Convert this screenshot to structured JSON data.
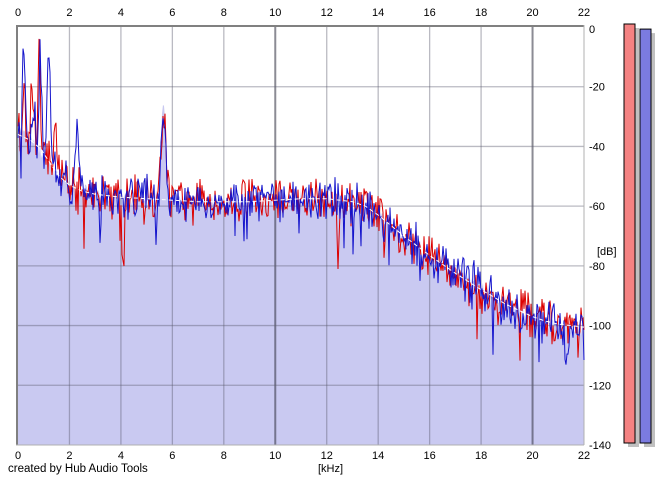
{
  "footer": {
    "credit": "created by Hub Audio Tools"
  },
  "chart_data": {
    "type": "line",
    "title": "",
    "xlabel": "[kHz]",
    "ylabel": "[dB]",
    "xlim": [
      0,
      22
    ],
    "ylim": [
      -140,
      0
    ],
    "grid": "on",
    "x_ticks": [
      0,
      2,
      4,
      6,
      8,
      10,
      12,
      14,
      16,
      18,
      20,
      22
    ],
    "y_ticks": [
      0,
      -20,
      -40,
      -60,
      -80,
      -100,
      -120,
      -140
    ],
    "colors": {
      "trace_red": "#dc0000",
      "trace_blue": "#1414cc",
      "fill_area": "#c9c9f1",
      "average_line": "#ffffff",
      "grid_minor": "rgba(90,90,110,0.42)",
      "grid_major": "rgba(55,55,70,0.58)",
      "border_dark": "#808080",
      "border_light": "#b0b0b0",
      "label": "#000000"
    },
    "series": [
      {
        "name": "spectrum-red",
        "color": "#dc0000",
        "style": "solid-noise"
      },
      {
        "name": "spectrum-blue",
        "color": "#1414cc",
        "style": "solid-noise"
      },
      {
        "name": "average-spectrum",
        "color": "#ffffff",
        "style": "dashed"
      },
      {
        "name": "average-fill",
        "color": "#c9c9f1",
        "style": "filled-area"
      }
    ],
    "average_spectrum_dB": [
      [
        0,
        -36
      ],
      [
        0.5,
        -38
      ],
      [
        0.9,
        -41
      ],
      [
        1.2,
        -45
      ],
      [
        1.6,
        -50
      ],
      [
        2,
        -53
      ],
      [
        2.5,
        -55
      ],
      [
        3,
        -56
      ],
      [
        4,
        -57
      ],
      [
        5,
        -57.5
      ],
      [
        6,
        -58
      ],
      [
        7,
        -58.5
      ],
      [
        9,
        -58.5
      ],
      [
        10,
        -58
      ],
      [
        11,
        -57.5
      ],
      [
        12,
        -57.5
      ],
      [
        13,
        -58.5
      ],
      [
        13.5,
        -60
      ],
      [
        14,
        -63
      ],
      [
        14.5,
        -66.5
      ],
      [
        15,
        -70
      ],
      [
        16,
        -76.5
      ],
      [
        17,
        -82.5
      ],
      [
        18,
        -88
      ],
      [
        19,
        -93
      ],
      [
        20,
        -97
      ],
      [
        20.5,
        -98.5
      ],
      [
        21,
        -99.5
      ],
      [
        22,
        -100.5
      ]
    ],
    "spectral_peaks": [
      {
        "f_khz": 0.22,
        "width": 0.04,
        "peak_dB": -16,
        "channel": "red"
      },
      {
        "f_khz": 0.23,
        "width": 0.04,
        "peak_dB": -6,
        "channel": "blue"
      },
      {
        "f_khz": 0.55,
        "width": 0.05,
        "peak_dB": -20,
        "channel": "red"
      },
      {
        "f_khz": 0.62,
        "width": 0.05,
        "peak_dB": -24,
        "channel": "blue"
      },
      {
        "f_khz": 0.82,
        "width": 0.05,
        "peak_dB": -8,
        "channel": "red"
      },
      {
        "f_khz": 0.87,
        "width": 0.05,
        "peak_dB": -12,
        "channel": "blue"
      },
      {
        "f_khz": 1.2,
        "width": 0.06,
        "peak_dB": -13,
        "channel": "blue"
      },
      {
        "f_khz": 1.45,
        "width": 0.05,
        "peak_dB": -27,
        "channel": "red"
      },
      {
        "f_khz": 2.3,
        "width": 0.06,
        "peak_dB": -33,
        "channel": "blue"
      },
      {
        "f_khz": 5.65,
        "width": 0.09,
        "peak_dB": -31,
        "channel": "both"
      },
      {
        "f_khz": 4.1,
        "width": 0.03,
        "peak_dB": -88,
        "channel": "red"
      },
      {
        "f_khz": 12.45,
        "width": 0.04,
        "peak_dB": -80,
        "channel": "red"
      },
      {
        "f_khz": 21.3,
        "width": 0.05,
        "peak_dB": -119,
        "channel": "blue"
      }
    ],
    "noise_amplitude_dB": 9,
    "generation_seeds": {
      "red": 20240,
      "blue": 77031,
      "fill": 5150
    },
    "meters": [
      {
        "name": "meter-red",
        "color": "#f48282",
        "shadow": "#c0c0c0",
        "border": "#000000",
        "level_dB": 0
      },
      {
        "name": "meter-blue",
        "color": "#7b7be0",
        "shadow": "#c0c0c0",
        "border": "#000000",
        "level_dB": -1.7
      }
    ]
  }
}
